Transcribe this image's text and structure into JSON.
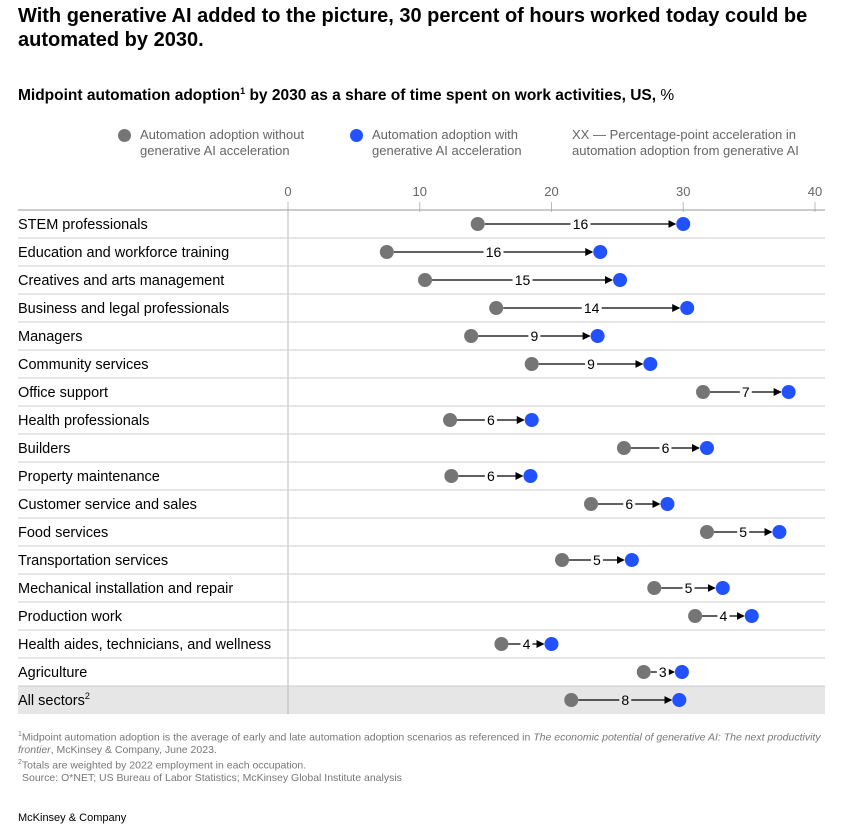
{
  "headline": "With generative AI added to the picture, 30 percent of hours worked today could be automated by 2030.",
  "subtitle": {
    "main": "Midpoint automation adoption",
    "sup": "1",
    "rest": " by 2030 as a share of time spent on work activities, US, ",
    "unit": "%"
  },
  "legend": {
    "without": "Automation adoption without generative AI acceleration",
    "with": "Automation adoption with generative AI acceleration",
    "xx": "XX — Percentage-point acceleration in automation adoption from generative AI"
  },
  "colors": {
    "without": "#757575",
    "with": "#2251ff",
    "highlight_row": "#e6e6e6",
    "grid": "#cccccc"
  },
  "chart_data": {
    "type": "dot-arrow",
    "xlim": [
      0,
      40
    ],
    "xticks": [
      0,
      10,
      20,
      30,
      40
    ],
    "series": [
      {
        "name": "Automation adoption without generative AI acceleration",
        "key": "without"
      },
      {
        "name": "Automation adoption with generative AI acceleration",
        "key": "with"
      }
    ],
    "rows": [
      {
        "label": "STEM professionals",
        "sup": "",
        "without": 14.4,
        "with": 30.0,
        "delta": "16",
        "highlight": false
      },
      {
        "label": "Education and workforce training",
        "sup": "",
        "without": 7.5,
        "with": 23.7,
        "delta": "16",
        "highlight": false
      },
      {
        "label": "Creatives and arts management",
        "sup": "",
        "without": 10.4,
        "with": 25.2,
        "delta": "15",
        "highlight": false
      },
      {
        "label": "Business and legal professionals",
        "sup": "",
        "without": 15.8,
        "with": 30.3,
        "delta": "14",
        "highlight": false
      },
      {
        "label": "Managers",
        "sup": "",
        "without": 13.9,
        "with": 23.5,
        "delta": "9",
        "highlight": false
      },
      {
        "label": "Community services",
        "sup": "",
        "without": 18.5,
        "with": 27.5,
        "delta": "9",
        "highlight": false
      },
      {
        "label": "Office support",
        "sup": "",
        "without": 31.5,
        "with": 38.0,
        "delta": "7",
        "highlight": false
      },
      {
        "label": "Health professionals",
        "sup": "",
        "without": 12.3,
        "with": 18.5,
        "delta": "6",
        "highlight": false
      },
      {
        "label": "Builders",
        "sup": "",
        "without": 25.5,
        "with": 31.8,
        "delta": "6",
        "highlight": false
      },
      {
        "label": "Property maintenance",
        "sup": "",
        "without": 12.4,
        "with": 18.4,
        "delta": "6",
        "highlight": false
      },
      {
        "label": "Customer service and sales",
        "sup": "",
        "without": 23.0,
        "with": 28.8,
        "delta": "6",
        "highlight": false
      },
      {
        "label": "Food services",
        "sup": "",
        "without": 31.8,
        "with": 37.3,
        "delta": "5",
        "highlight": false
      },
      {
        "label": "Transportation services",
        "sup": "",
        "without": 20.8,
        "with": 26.1,
        "delta": "5",
        "highlight": false
      },
      {
        "label": "Mechanical installation and repair",
        "sup": "",
        "without": 27.8,
        "with": 33.0,
        "delta": "5",
        "highlight": false
      },
      {
        "label": "Production work",
        "sup": "",
        "without": 30.9,
        "with": 35.2,
        "delta": "4",
        "highlight": false
      },
      {
        "label": "Health aides, technicians, and wellness",
        "sup": "",
        "without": 16.2,
        "with": 20.0,
        "delta": "4",
        "highlight": false
      },
      {
        "label": "Agriculture",
        "sup": "",
        "without": 27.0,
        "with": 29.9,
        "delta": "3",
        "highlight": false
      },
      {
        "label": "All sectors",
        "sup": "2",
        "without": 21.5,
        "with": 29.7,
        "delta": "8",
        "highlight": true
      }
    ]
  },
  "footnotes": {
    "f1_sup": "1",
    "f1_a": "Midpoint automation adoption is the average of early and late automation adoption scenarios as referenced in ",
    "f1_italic": "The economic potential of generative AI: The next productivity frontier",
    "f1_b": ", McKinsey & Company, June 2023.",
    "f2_sup": "2",
    "f2": "Totals are weighted by 2022 employment in each occupation.",
    "source": "Source: O*NET; US Bureau of Labor Statistics; McKinsey Global Institute analysis"
  },
  "brand": "McKinsey & Company"
}
